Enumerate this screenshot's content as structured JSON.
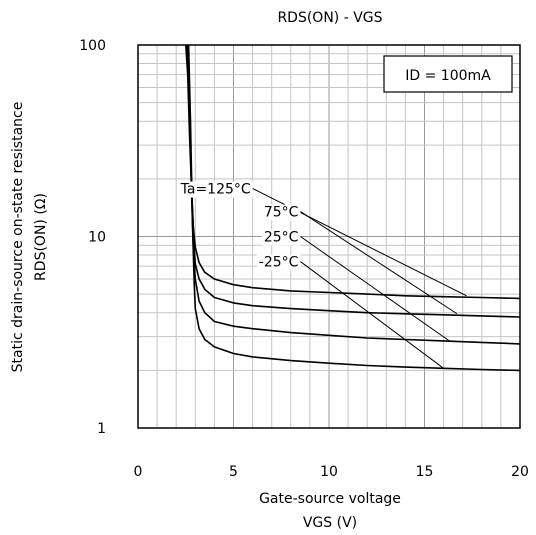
{
  "chart_data": {
    "type": "line",
    "title": "RDS(ON) - VGS",
    "xlabel_line1": "Gate-source voltage",
    "xlabel_line2": "VGS (V)",
    "ylabel_line1": "Static drain-source on-state resistance",
    "ylabel_line2": "RDS(ON) (Ω)",
    "condition": "ID = 100mA",
    "xlim": [
      0,
      20
    ],
    "ylim": [
      1,
      100
    ],
    "yscale": "log",
    "grid": true,
    "x_ticks": [
      "0",
      "5",
      "10",
      "15",
      "20"
    ],
    "y_ticks": [
      "1",
      "10",
      "100"
    ],
    "series": [
      {
        "name": "Ta=125°C",
        "x": [
          2.5,
          2.6,
          2.7,
          2.8,
          2.9,
          3.0,
          3.2,
          3.5,
          4,
          5,
          6,
          8,
          10,
          12,
          14,
          16,
          18,
          20
        ],
        "y": [
          100,
          70,
          33,
          18,
          11,
          8.8,
          7.3,
          6.5,
          6.0,
          5.6,
          5.4,
          5.2,
          5.1,
          5.0,
          4.9,
          4.85,
          4.8,
          4.75
        ]
      },
      {
        "name": "75°C",
        "x": [
          2.55,
          2.65,
          2.75,
          2.85,
          2.95,
          3.0,
          3.2,
          3.5,
          4,
          5,
          6,
          8,
          10,
          12,
          14,
          16,
          18,
          20
        ],
        "y": [
          100,
          60,
          28,
          14,
          8.5,
          7.2,
          6.0,
          5.3,
          4.8,
          4.5,
          4.35,
          4.2,
          4.1,
          4.0,
          3.95,
          3.9,
          3.85,
          3.8
        ]
      },
      {
        "name": "25°C",
        "x": [
          2.6,
          2.7,
          2.8,
          2.9,
          3.0,
          3.2,
          3.5,
          4,
          5,
          6,
          8,
          10,
          12,
          14,
          16,
          18,
          20
        ],
        "y": [
          100,
          45,
          17,
          8.5,
          6.0,
          4.6,
          4.0,
          3.6,
          3.4,
          3.3,
          3.15,
          3.05,
          2.95,
          2.9,
          2.85,
          2.8,
          2.75
        ]
      },
      {
        "name": "-25°C",
        "x": [
          2.65,
          2.75,
          2.85,
          2.95,
          3.0,
          3.2,
          3.5,
          4,
          5,
          6,
          8,
          10,
          12,
          14,
          16,
          18,
          20
        ],
        "y": [
          100,
          40,
          12,
          5.5,
          4.2,
          3.3,
          2.9,
          2.65,
          2.45,
          2.35,
          2.25,
          2.18,
          2.12,
          2.08,
          2.05,
          2.02,
          2.0
        ]
      }
    ],
    "curve_labels": [
      {
        "text": "Ta=125°C",
        "series": 0,
        "label_x": 5.9,
        "label_y": 17.8,
        "target_x": 17.2,
        "target_y": 4.9
      },
      {
        "text": "75°C",
        "series": 1,
        "label_x": 8.4,
        "label_y": 13.5,
        "target_x": 16.7,
        "target_y": 3.95
      },
      {
        "text": "25°C",
        "series": 2,
        "label_x": 8.4,
        "label_y": 10.0,
        "target_x": 16.3,
        "target_y": 2.85
      },
      {
        "text": "-25°C",
        "series": 3,
        "label_x": 8.4,
        "label_y": 7.4,
        "target_x": 16.0,
        "target_y": 2.05
      }
    ]
  }
}
